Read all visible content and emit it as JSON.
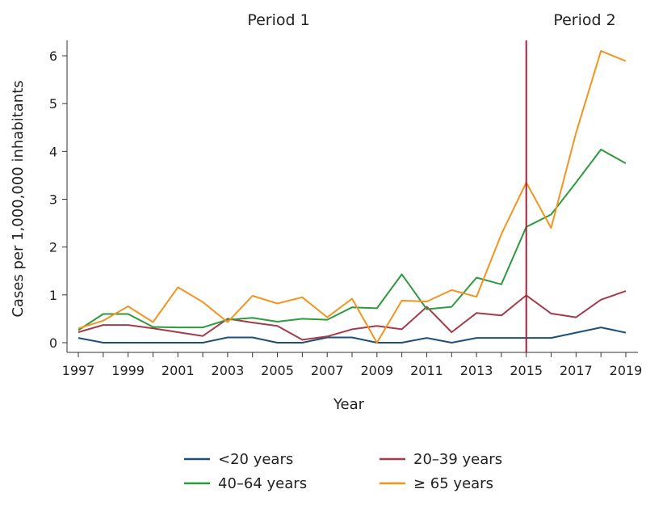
{
  "chart_data": {
    "type": "line",
    "xlabel": "Year",
    "ylabel": "Cases per 1,000,000 inhabitants",
    "xlim": [
      1997,
      2019
    ],
    "ylim": [
      0,
      6
    ],
    "x_ticks": [
      "1997",
      "1999",
      "2001",
      "2003",
      "2005",
      "2007",
      "2009",
      "2011",
      "2013",
      "2015",
      "2017",
      "2019"
    ],
    "y_ticks": [
      "0",
      "1",
      "2",
      "3",
      "4",
      "5",
      "6"
    ],
    "x": [
      1997,
      1998,
      1999,
      2000,
      2001,
      2002,
      2003,
      2004,
      2005,
      2006,
      2007,
      2008,
      2009,
      2010,
      2011,
      2012,
      2013,
      2014,
      2015,
      2016,
      2017,
      2018,
      2019
    ],
    "grid": false,
    "legend_position": "bottom",
    "series": [
      {
        "name": "<20 years",
        "color": "#1f4e79",
        "values": [
          0.1,
          0,
          0,
          0,
          0,
          0,
          0.11,
          0.11,
          0,
          0,
          0.11,
          0.11,
          0,
          0,
          0.1,
          0,
          0.1,
          0.1,
          0.1,
          0.1,
          0.21,
          0.32,
          0.21
        ]
      },
      {
        "name": "20–39 years",
        "color": "#a33c4a",
        "values": [
          0.22,
          0.37,
          0.37,
          0.3,
          0.22,
          0.14,
          0.5,
          0.42,
          0.35,
          0.06,
          0.13,
          0.28,
          0.35,
          0.28,
          0.75,
          0.22,
          0.62,
          0.57,
          0.99,
          0.61,
          0.53,
          0.9,
          1.08
        ]
      },
      {
        "name": "40–64 years",
        "color": "#2e9a3e",
        "values": [
          0.26,
          0.6,
          0.6,
          0.33,
          0.32,
          0.32,
          0.48,
          0.52,
          0.44,
          0.5,
          0.48,
          0.74,
          0.72,
          1.43,
          0.7,
          0.75,
          1.36,
          1.22,
          2.42,
          2.68,
          3.35,
          4.04,
          3.75
        ]
      },
      {
        "name": "≥ 65 years",
        "color": "#f4931f",
        "values": [
          0.3,
          0.46,
          0.76,
          0.43,
          1.16,
          0.85,
          0.43,
          0.98,
          0.82,
          0.95,
          0.53,
          0.92,
          0,
          0.88,
          0.86,
          1.1,
          0.96,
          2.27,
          3.35,
          2.4,
          4.39,
          6.1,
          5.89
        ]
      }
    ],
    "annotations": {
      "period1": "Period 1",
      "period2": "Period 2",
      "divider_year": 2015,
      "divider_color": "#a3243b"
    }
  }
}
